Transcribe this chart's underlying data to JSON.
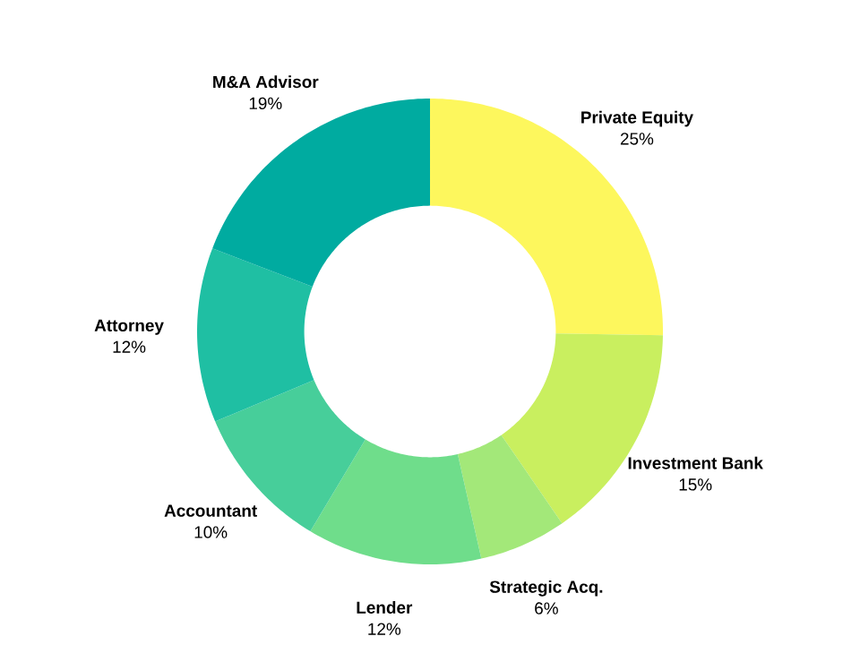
{
  "chart_data": {
    "type": "donut",
    "categories": [
      "Private Equity",
      "Investment Bank",
      "Strategic Acq.",
      "Lender",
      "Accountant",
      "Attorney",
      "M&A Advisor"
    ],
    "values": [
      25,
      15,
      6,
      12,
      10,
      12,
      19
    ],
    "value_labels": [
      "25%",
      "15%",
      "6%",
      "12%",
      "10%",
      "12%",
      "19%"
    ],
    "colors": [
      "#fdf75d",
      "#c9ef5f",
      "#a3e879",
      "#6fdd8b",
      "#47ce9a",
      "#1fbfa3",
      "#00aba0"
    ]
  }
}
